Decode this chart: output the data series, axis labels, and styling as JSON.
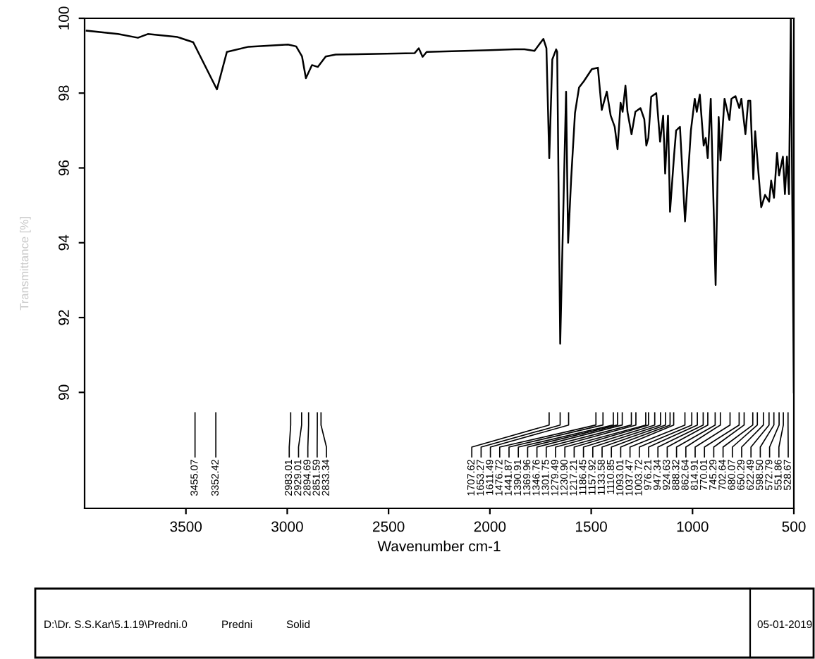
{
  "chart_data": {
    "type": "line",
    "xlabel": "Wavenumber cm-1",
    "ylabel": "Transmittance [%]",
    "xlim": [
      4000,
      500
    ],
    "xticks": [
      3500,
      3000,
      2500,
      2000,
      1500,
      1000,
      500
    ],
    "ylim": [
      86.9,
      100
    ],
    "yticks": [
      90,
      92,
      94,
      96,
      98,
      100
    ],
    "grid": false,
    "legend": false,
    "marker": "none",
    "line_style": "solid",
    "series": [
      {
        "color": "#000000",
        "x": [
          3990,
          3835,
          3737,
          3688,
          3542,
          3464,
          3347,
          3298,
          3191,
          2996,
          2956,
          2927,
          2908,
          2878,
          2849,
          2810,
          2761,
          2371,
          2351,
          2332,
          2312,
          2000,
          1878,
          1829,
          1780,
          1736,
          1721,
          1707,
          1692,
          1673,
          1668,
          1653,
          1624,
          1614,
          1599,
          1580,
          1560,
          1536,
          1497,
          1467,
          1448,
          1423,
          1404,
          1384,
          1370,
          1355,
          1345,
          1331,
          1321,
          1301,
          1282,
          1257,
          1238,
          1228,
          1218,
          1204,
          1179,
          1160,
          1145,
          1135,
          1121,
          1111,
          1091,
          1081,
          1062,
          1037,
          1018,
          1008,
          989,
          979,
          964,
          945,
          935,
          925,
          910,
          886,
          871,
          862,
          842,
          818,
          808,
          788,
          769,
          759,
          739,
          725,
          715,
          700,
          691,
          661,
          642,
          622,
          612,
          598,
          583,
          573,
          554,
          544,
          534,
          524,
          515,
          500
        ],
        "values": [
          99.67,
          99.58,
          99.48,
          99.58,
          99.5,
          99.36,
          98.1,
          99.1,
          99.24,
          99.3,
          99.25,
          98.98,
          98.4,
          98.75,
          98.7,
          98.98,
          99.03,
          99.07,
          99.2,
          98.97,
          99.1,
          99.15,
          99.17,
          99.17,
          99.13,
          99.45,
          99.2,
          96.26,
          98.9,
          99.17,
          99.1,
          91.3,
          98.04,
          94.0,
          95.7,
          97.47,
          98.15,
          98.32,
          98.64,
          98.68,
          97.55,
          98.04,
          97.4,
          97.1,
          96.5,
          97.74,
          97.5,
          98.2,
          97.5,
          96.9,
          97.5,
          97.6,
          97.3,
          96.6,
          96.8,
          97.9,
          98.0,
          96.7,
          97.4,
          95.85,
          97.4,
          94.83,
          96.34,
          97.0,
          97.1,
          94.57,
          96.15,
          97.0,
          97.85,
          97.5,
          97.96,
          96.6,
          96.8,
          96.26,
          97.85,
          92.87,
          97.36,
          96.2,
          97.85,
          97.28,
          97.85,
          97.92,
          97.6,
          97.85,
          96.9,
          97.8,
          97.8,
          95.7,
          96.98,
          94.95,
          95.28,
          95.1,
          95.66,
          95.2,
          96.4,
          95.8,
          96.3,
          95.3,
          96.3,
          95.3,
          100,
          90.0
        ]
      }
    ],
    "annotations": [
      "3455.07",
      "3352.42",
      "2983.01",
      "2929.01",
      "2894.69",
      "2851.59",
      "2833.34",
      "1707.62",
      "1653.27",
      "1611.49",
      "1476.72",
      "1441.87",
      "1390.91",
      "1369.96",
      "1346.76",
      "1301.75",
      "1279.49",
      "1230.90",
      "1217.21",
      "1186.45",
      "1157.92",
      "1133.58",
      "1110.85",
      "1093.01",
      "1037.47",
      "1003.72",
      "976.21",
      "947.34",
      "924.63",
      "888.32",
      "862.64",
      "814.91",
      "770.01",
      "745.29",
      "702.64",
      "680.07",
      "650.29",
      "622.49",
      "598.50",
      "572.79",
      "551.86",
      "528.67",
      "D:\\Dr. S.S.Kar\\5.1.19\\Predni.0",
      "Predni",
      "Solid",
      "05-01-2019"
    ]
  }
}
